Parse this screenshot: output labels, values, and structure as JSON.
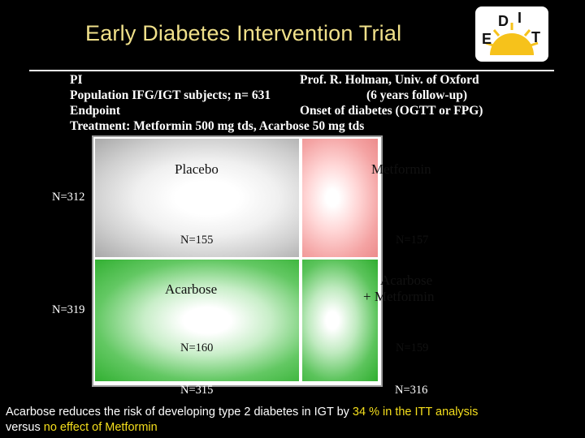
{
  "slide": {
    "title": "Early Diabetes Intervention Trial",
    "logo_letters": [
      "E",
      "D",
      "I",
      "T"
    ]
  },
  "info": [
    {
      "key": "PI",
      "value": "Prof. R. Holman, Univ. of Oxford"
    },
    {
      "key": "Population IFG/IGT subjects; n= 631",
      "value": "(6 years follow-up)"
    },
    {
      "key": "Endpoint",
      "value": "Onset of diabetes (OGTT or FPG)"
    },
    {
      "key": "Treatment: Metformin 500 mg tds, Acarbose 50 mg tds",
      "value": ""
    }
  ],
  "grid": {
    "placebo": {
      "label": "Placebo",
      "n": "N=155"
    },
    "metformin": {
      "label": "Metformin",
      "n": "N=157"
    },
    "acarbose": {
      "label": "Acarbose",
      "n": "N=160"
    },
    "combo": {
      "label_line1": "Acarbose",
      "label_line2": "+ Metformin",
      "n": "N=159"
    },
    "row_totals": {
      "top": "N=312",
      "bottom": "N=319"
    },
    "col_totals": {
      "left": "N=315",
      "right": "N=316"
    }
  },
  "conclusion": {
    "part1": "Acarbose reduces the risk of developing type 2 diabetes in IGT by ",
    "highlight1": "34 % in the ITT analysis",
    "part2": "versus ",
    "highlight2": "no effect of Metformin"
  },
  "colors": {
    "title": "#f0e08a",
    "highlight": "#f5df1c",
    "placebo_cell": "#cfcfcf",
    "metformin_cell": "#f4a3a3",
    "acarbose_cell": "#63c863",
    "combo_cell": "#5cc45c"
  }
}
